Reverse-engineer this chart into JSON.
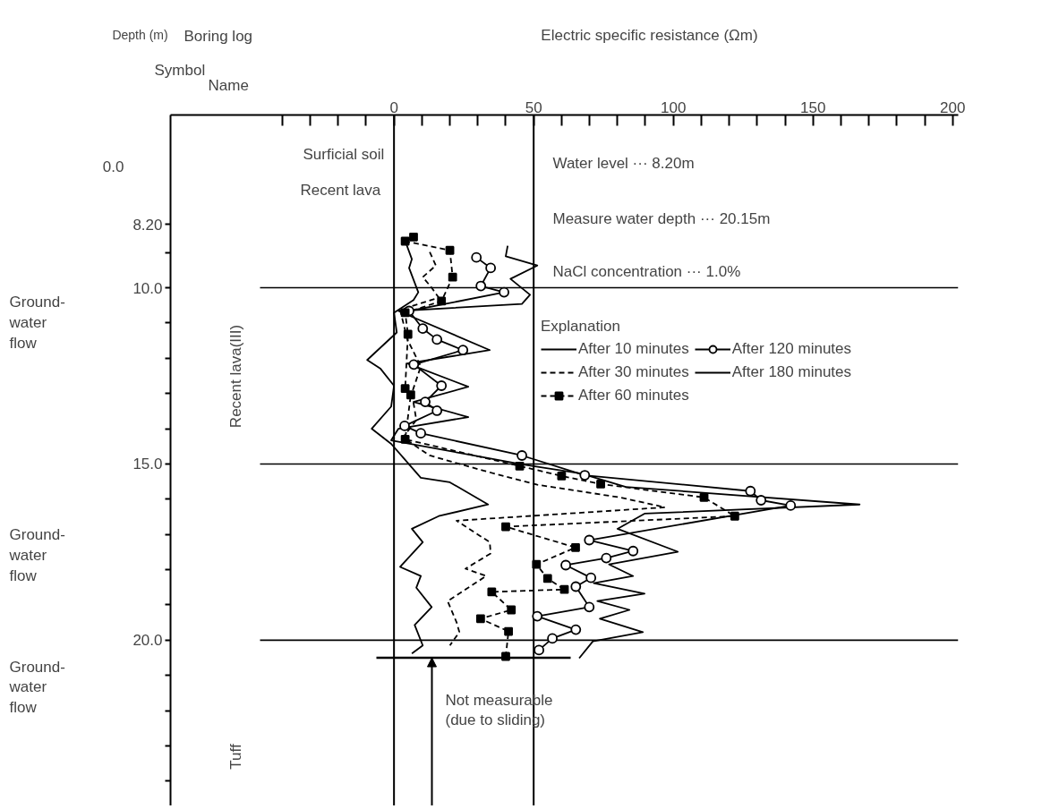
{
  "chart_data": {
    "type": "line",
    "title": "Electric specific resistance (Ωm)",
    "ylabel": "Depth (m)",
    "legend_title": "Explanation",
    "xlim": [
      -80,
      202
    ],
    "ylim": [
      24.7,
      5.1
    ],
    "xticks": [
      {
        "value": -40,
        "label": null
      },
      {
        "value": -30,
        "label": null
      },
      {
        "value": -20,
        "label": null
      },
      {
        "value": -10,
        "label": null
      },
      0,
      {
        "value": 10,
        "label": null
      },
      {
        "value": 20,
        "label": null
      },
      {
        "value": 30,
        "label": null
      },
      {
        "value": 40,
        "label": null
      },
      50,
      {
        "value": 60,
        "label": null
      },
      {
        "value": 70,
        "label": null
      },
      {
        "value": 80,
        "label": null
      },
      {
        "value": 90,
        "label": null
      },
      100,
      {
        "value": 110,
        "label": null
      },
      {
        "value": 120,
        "label": null
      },
      {
        "value": 130,
        "label": null
      },
      {
        "value": 140,
        "label": null
      },
      150,
      {
        "value": 160,
        "label": null
      },
      {
        "value": 170,
        "label": null
      },
      {
        "value": 180,
        "label": null
      },
      {
        "value": 190,
        "label": null
      },
      200
    ],
    "yticks": [
      {
        "value": 8.2,
        "label": "8.20"
      },
      {
        "value": 9,
        "label": null
      },
      {
        "value": 10,
        "label": "10.0"
      },
      {
        "value": 11,
        "label": null
      },
      {
        "value": 12,
        "label": null
      },
      {
        "value": 13,
        "label": null
      },
      {
        "value": 14,
        "label": null
      },
      {
        "value": 15,
        "label": "15.0"
      },
      {
        "value": 16,
        "label": null
      },
      {
        "value": 17,
        "label": null
      },
      {
        "value": 18,
        "label": null
      },
      {
        "value": 19,
        "label": null
      },
      {
        "value": 20,
        "label": "20.0"
      },
      {
        "value": 21,
        "label": null
      },
      {
        "value": 22,
        "label": null
      },
      {
        "value": 23,
        "label": null
      },
      {
        "value": 24,
        "label": null
      }
    ],
    "grid": false,
    "legend": "right",
    "ref_lines": [
      {
        "axis": "x",
        "value": 0,
        "label": null
      },
      {
        "axis": "x",
        "value": 50,
        "label": null
      },
      {
        "axis": "y",
        "value": 10,
        "label": null
      },
      {
        "axis": "y",
        "value": 15,
        "label": null
      },
      {
        "axis": "y",
        "value": 20,
        "label": null
      },
      {
        "axis": "y",
        "value": 20.5,
        "label": "Not measurable (due to sliding)"
      }
    ],
    "series": [
      {
        "name": "After 10 minutes",
        "color": "#000000",
        "line_style": "solid",
        "marker": "none",
        "x": [
          3.8,
          6.4,
          5.4,
          8.7,
          7,
          0,
          1,
          -9.6,
          -4.8,
          0,
          -1,
          -8,
          -1,
          5.4,
          9.6,
          20,
          33.7,
          16,
          6.4,
          10.3,
          2.2,
          9.6,
          8,
          13.5,
          7.4,
          10.3,
          6.4
        ],
        "values": [
          8.63,
          9.19,
          9.44,
          10.13,
          10.35,
          10.71,
          11.27,
          12.05,
          12.3,
          12.78,
          13.37,
          14.0,
          14.43,
          15.01,
          15.39,
          15.52,
          16.15,
          16.48,
          16.84,
          17.22,
          17.92,
          18.18,
          18.51,
          19.06,
          19.57,
          20.15,
          20.38
        ]
      },
      {
        "name": "After 30 minutes",
        "color": "#000000",
        "line_style": "dashed",
        "marker": "none",
        "x": [
          12.8,
          15,
          10.3,
          13.5,
          16,
          2.2,
          4.8,
          9.6,
          6.4,
          8,
          3.2,
          12.8,
          32,
          51.3,
          81,
          97,
          22.4,
          34.3,
          34.6,
          25.6,
          33,
          19.2,
          22.4,
          23.4,
          20
        ],
        "values": [
          8.99,
          9.37,
          9.7,
          10.0,
          10.28,
          10.63,
          11.47,
          12.23,
          12.99,
          13.75,
          14.25,
          14.76,
          15.19,
          15.59,
          15.95,
          16.23,
          16.61,
          17.22,
          17.54,
          17.97,
          18.18,
          18.89,
          19.49,
          19.77,
          20.15
        ]
      },
      {
        "name": "After 60 minutes",
        "color": "#000000",
        "line_style": "dashed",
        "marker": "square",
        "x": [
          7,
          4,
          20,
          21,
          17,
          4,
          5,
          4,
          6,
          4,
          45,
          60,
          74,
          111,
          122,
          40,
          65,
          51,
          55,
          61,
          35,
          42,
          31,
          41,
          40
        ],
        "values": [
          8.56,
          8.68,
          8.94,
          9.7,
          10.38,
          10.71,
          11.32,
          12.86,
          13.04,
          14.3,
          15.06,
          15.34,
          15.57,
          15.95,
          16.48,
          16.78,
          17.37,
          17.85,
          18.25,
          18.56,
          18.63,
          19.14,
          19.39,
          19.75,
          20.46
        ]
      },
      {
        "name": "After 120 minutes",
        "color": "#000000",
        "line_style": "solid",
        "marker": "circle",
        "x": [
          29.5,
          34.6,
          31.1,
          39.4,
          5.4,
          10.3,
          15.4,
          24.7,
          7.1,
          17,
          11.2,
          15.4,
          3.8,
          9.6,
          45.8,
          68.3,
          127.6,
          131.4,
          142,
          69.9,
          85.6,
          76,
          61.5,
          70.5,
          65.1,
          69.9,
          51.3,
          65.1,
          56.7,
          51.9
        ],
        "values": [
          9.14,
          9.44,
          9.95,
          10.13,
          10.66,
          11.16,
          11.47,
          11.77,
          12.18,
          12.78,
          13.24,
          13.49,
          13.92,
          14.13,
          14.76,
          15.32,
          15.77,
          16.03,
          16.18,
          17.16,
          17.47,
          17.67,
          17.87,
          18.23,
          18.48,
          19.06,
          19.32,
          19.7,
          19.95,
          20.28
        ]
      },
      {
        "name": "After 180 minutes",
        "color": "#000000",
        "line_style": "solid",
        "marker": "none",
        "x": [
          40.7,
          40,
          51.3,
          41.7,
          48.7,
          45.8,
          1.6,
          34.3,
          4.8,
          26.6,
          7,
          26.6,
          1.6,
          -1,
          45.8,
          67,
          83,
          166.7,
          89.7,
          80,
          101.6,
          77,
          85.6,
          71.5,
          89.7,
          72.8,
          84.3,
          73.7,
          89.1,
          71.2,
          66.3
        ],
        "values": [
          8.81,
          9.11,
          9.37,
          9.75,
          10.2,
          10.46,
          10.66,
          11.77,
          12.15,
          12.81,
          13.24,
          13.67,
          14.0,
          14.33,
          15.01,
          15.27,
          15.65,
          16.15,
          16.41,
          16.84,
          17.49,
          17.85,
          18.18,
          18.38,
          18.68,
          18.89,
          19.14,
          19.39,
          19.77,
          20.03,
          20.51
        ]
      }
    ],
    "annotations": [
      "Boring log",
      "Symbol",
      "Name",
      "0.0",
      "Surficial soil",
      "Recent lava",
      "Recent lava(III)",
      "Tuff",
      "Ground-water flow",
      "Ground-water flow",
      "Ground-water flow",
      "Water level ··· 8.20m",
      "Measure water depth ··· 20.15m",
      "NaCl concentration ··· 1.0%"
    ]
  }
}
